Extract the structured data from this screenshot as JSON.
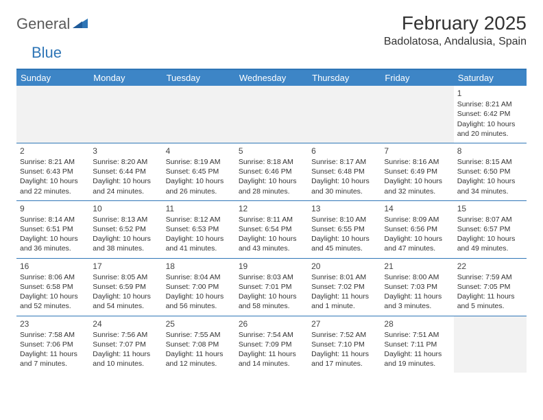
{
  "logo": {
    "text1": "General",
    "text2": "Blue",
    "triangle_color": "#2e75b6"
  },
  "title": "February 2025",
  "location": "Badolatosa, Andalusia, Spain",
  "colors": {
    "header_bg": "#3d85c6",
    "header_text": "#ffffff",
    "rule": "#2e75b6",
    "empty_bg": "#f2f2f2",
    "text": "#333333"
  },
  "weekdays": [
    "Sunday",
    "Monday",
    "Tuesday",
    "Wednesday",
    "Thursday",
    "Friday",
    "Saturday"
  ],
  "weeks": [
    [
      null,
      null,
      null,
      null,
      null,
      null,
      {
        "n": "1",
        "sr": "Sunrise: 8:21 AM",
        "ss": "Sunset: 6:42 PM",
        "dl": "Daylight: 10 hours and 20 minutes."
      }
    ],
    [
      {
        "n": "2",
        "sr": "Sunrise: 8:21 AM",
        "ss": "Sunset: 6:43 PM",
        "dl": "Daylight: 10 hours and 22 minutes."
      },
      {
        "n": "3",
        "sr": "Sunrise: 8:20 AM",
        "ss": "Sunset: 6:44 PM",
        "dl": "Daylight: 10 hours and 24 minutes."
      },
      {
        "n": "4",
        "sr": "Sunrise: 8:19 AM",
        "ss": "Sunset: 6:45 PM",
        "dl": "Daylight: 10 hours and 26 minutes."
      },
      {
        "n": "5",
        "sr": "Sunrise: 8:18 AM",
        "ss": "Sunset: 6:46 PM",
        "dl": "Daylight: 10 hours and 28 minutes."
      },
      {
        "n": "6",
        "sr": "Sunrise: 8:17 AM",
        "ss": "Sunset: 6:48 PM",
        "dl": "Daylight: 10 hours and 30 minutes."
      },
      {
        "n": "7",
        "sr": "Sunrise: 8:16 AM",
        "ss": "Sunset: 6:49 PM",
        "dl": "Daylight: 10 hours and 32 minutes."
      },
      {
        "n": "8",
        "sr": "Sunrise: 8:15 AM",
        "ss": "Sunset: 6:50 PM",
        "dl": "Daylight: 10 hours and 34 minutes."
      }
    ],
    [
      {
        "n": "9",
        "sr": "Sunrise: 8:14 AM",
        "ss": "Sunset: 6:51 PM",
        "dl": "Daylight: 10 hours and 36 minutes."
      },
      {
        "n": "10",
        "sr": "Sunrise: 8:13 AM",
        "ss": "Sunset: 6:52 PM",
        "dl": "Daylight: 10 hours and 38 minutes."
      },
      {
        "n": "11",
        "sr": "Sunrise: 8:12 AM",
        "ss": "Sunset: 6:53 PM",
        "dl": "Daylight: 10 hours and 41 minutes."
      },
      {
        "n": "12",
        "sr": "Sunrise: 8:11 AM",
        "ss": "Sunset: 6:54 PM",
        "dl": "Daylight: 10 hours and 43 minutes."
      },
      {
        "n": "13",
        "sr": "Sunrise: 8:10 AM",
        "ss": "Sunset: 6:55 PM",
        "dl": "Daylight: 10 hours and 45 minutes."
      },
      {
        "n": "14",
        "sr": "Sunrise: 8:09 AM",
        "ss": "Sunset: 6:56 PM",
        "dl": "Daylight: 10 hours and 47 minutes."
      },
      {
        "n": "15",
        "sr": "Sunrise: 8:07 AM",
        "ss": "Sunset: 6:57 PM",
        "dl": "Daylight: 10 hours and 49 minutes."
      }
    ],
    [
      {
        "n": "16",
        "sr": "Sunrise: 8:06 AM",
        "ss": "Sunset: 6:58 PM",
        "dl": "Daylight: 10 hours and 52 minutes."
      },
      {
        "n": "17",
        "sr": "Sunrise: 8:05 AM",
        "ss": "Sunset: 6:59 PM",
        "dl": "Daylight: 10 hours and 54 minutes."
      },
      {
        "n": "18",
        "sr": "Sunrise: 8:04 AM",
        "ss": "Sunset: 7:00 PM",
        "dl": "Daylight: 10 hours and 56 minutes."
      },
      {
        "n": "19",
        "sr": "Sunrise: 8:03 AM",
        "ss": "Sunset: 7:01 PM",
        "dl": "Daylight: 10 hours and 58 minutes."
      },
      {
        "n": "20",
        "sr": "Sunrise: 8:01 AM",
        "ss": "Sunset: 7:02 PM",
        "dl": "Daylight: 11 hours and 1 minute."
      },
      {
        "n": "21",
        "sr": "Sunrise: 8:00 AM",
        "ss": "Sunset: 7:03 PM",
        "dl": "Daylight: 11 hours and 3 minutes."
      },
      {
        "n": "22",
        "sr": "Sunrise: 7:59 AM",
        "ss": "Sunset: 7:05 PM",
        "dl": "Daylight: 11 hours and 5 minutes."
      }
    ],
    [
      {
        "n": "23",
        "sr": "Sunrise: 7:58 AM",
        "ss": "Sunset: 7:06 PM",
        "dl": "Daylight: 11 hours and 7 minutes."
      },
      {
        "n": "24",
        "sr": "Sunrise: 7:56 AM",
        "ss": "Sunset: 7:07 PM",
        "dl": "Daylight: 11 hours and 10 minutes."
      },
      {
        "n": "25",
        "sr": "Sunrise: 7:55 AM",
        "ss": "Sunset: 7:08 PM",
        "dl": "Daylight: 11 hours and 12 minutes."
      },
      {
        "n": "26",
        "sr": "Sunrise: 7:54 AM",
        "ss": "Sunset: 7:09 PM",
        "dl": "Daylight: 11 hours and 14 minutes."
      },
      {
        "n": "27",
        "sr": "Sunrise: 7:52 AM",
        "ss": "Sunset: 7:10 PM",
        "dl": "Daylight: 11 hours and 17 minutes."
      },
      {
        "n": "28",
        "sr": "Sunrise: 7:51 AM",
        "ss": "Sunset: 7:11 PM",
        "dl": "Daylight: 11 hours and 19 minutes."
      },
      null
    ]
  ]
}
